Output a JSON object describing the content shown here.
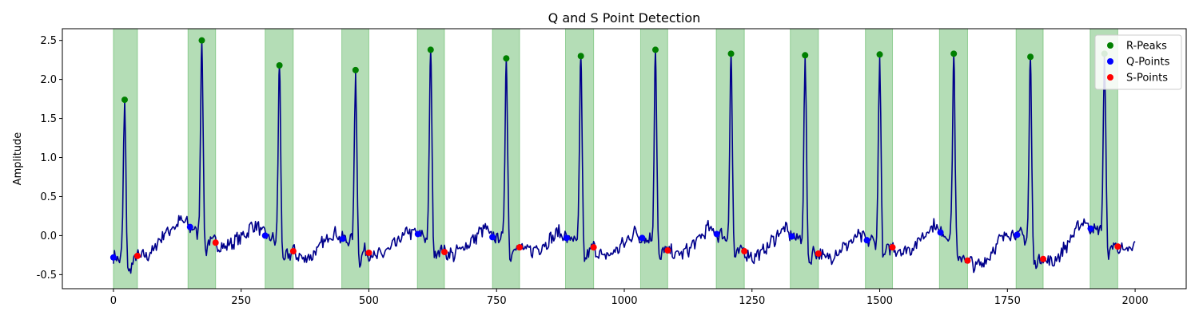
{
  "chart_data": {
    "type": "line",
    "title": "Q and S Point Detection",
    "xlabel": "",
    "ylabel": "Amplitude",
    "xlim": [
      -100,
      2100
    ],
    "ylim": [
      -0.68,
      2.65
    ],
    "xticks": [
      0,
      250,
      500,
      750,
      1000,
      1250,
      1500,
      1750,
      2000
    ],
    "yticks": [
      -0.5,
      0.0,
      0.5,
      1.0,
      1.5,
      2.0,
      2.5
    ],
    "grid": false,
    "legend_position": "top-right",
    "colors": {
      "signal": "#00008b",
      "r_peaks": "#008000",
      "q_points": "#0000ff",
      "s_points": "#ff0000",
      "qrs_band": "#4caf50"
    },
    "legend": [
      {
        "label": "R-Peaks",
        "color": "#008000"
      },
      {
        "label": "Q-Points",
        "color": "#0000ff"
      },
      {
        "label": "S-Points",
        "color": "#ff0000"
      }
    ],
    "qrs_regions": [
      [
        0,
        47
      ],
      [
        146,
        200
      ],
      [
        297,
        352
      ],
      [
        447,
        500
      ],
      [
        595,
        648
      ],
      [
        742,
        795
      ],
      [
        885,
        940
      ],
      [
        1032,
        1085
      ],
      [
        1180,
        1235
      ],
      [
        1325,
        1380
      ],
      [
        1472,
        1525
      ],
      [
        1617,
        1672
      ],
      [
        1767,
        1820
      ],
      [
        1912,
        1966
      ]
    ],
    "r_peaks": {
      "name": "R-Peaks",
      "x": [
        22,
        173,
        325,
        474,
        621,
        769,
        915,
        1061,
        1209,
        1354,
        1500,
        1645,
        1795,
        1940
      ],
      "y": [
        1.74,
        2.5,
        2.18,
        2.12,
        2.38,
        2.27,
        2.3,
        2.38,
        2.33,
        2.31,
        2.32,
        2.33,
        2.29,
        2.33
      ]
    },
    "q_points": {
      "name": "Q-Points",
      "x": [
        0,
        150,
        297,
        449,
        596,
        742,
        887,
        1035,
        1181,
        1328,
        1475,
        1619,
        1769,
        1913
      ],
      "y": [
        -0.28,
        0.11,
        0.0,
        -0.04,
        0.02,
        -0.02,
        -0.03,
        -0.03,
        0.02,
        -0.01,
        -0.06,
        0.04,
        0.01,
        0.09
      ]
    },
    "s_points": {
      "name": "S-Points",
      "x": [
        47,
        200,
        352,
        500,
        648,
        795,
        940,
        1085,
        1235,
        1380,
        1525,
        1672,
        1820,
        1966
      ],
      "y": [
        -0.26,
        -0.09,
        -0.2,
        -0.22,
        -0.21,
        -0.15,
        -0.15,
        -0.19,
        -0.2,
        -0.23,
        -0.15,
        -0.32,
        -0.3,
        -0.14
      ]
    },
    "signal": {
      "name": "ECG",
      "beat_x": [
        22,
        173,
        325,
        474,
        621,
        769,
        915,
        1061,
        1209,
        1354,
        1500,
        1645,
        1795,
        1940
      ],
      "beat_peak": [
        1.74,
        2.5,
        2.18,
        2.12,
        2.38,
        2.27,
        2.3,
        2.38,
        2.33,
        2.31,
        2.32,
        2.33,
        2.29,
        2.33
      ],
      "baseline": [
        [
          0,
          -0.28
        ],
        [
          15,
          -0.3
        ],
        [
          35,
          -0.35
        ],
        [
          47,
          -0.26
        ],
        [
          60,
          -0.27
        ],
        [
          75,
          -0.22
        ],
        [
          95,
          0.0
        ],
        [
          115,
          0.1
        ],
        [
          135,
          0.2
        ],
        [
          150,
          0.11
        ],
        [
          160,
          0.06
        ],
        [
          185,
          -0.05
        ],
        [
          200,
          -0.09
        ],
        [
          215,
          -0.15
        ],
        [
          230,
          -0.1
        ],
        [
          255,
          0.0
        ],
        [
          275,
          0.15
        ],
        [
          290,
          0.05
        ],
        [
          300,
          0.0
        ],
        [
          312,
          -0.05
        ],
        [
          340,
          -0.25
        ],
        [
          352,
          -0.2
        ],
        [
          370,
          -0.3
        ],
        [
          390,
          -0.25
        ],
        [
          410,
          -0.1
        ],
        [
          430,
          0.05
        ],
        [
          447,
          -0.04
        ],
        [
          460,
          -0.05
        ],
        [
          490,
          -0.2
        ],
        [
          500,
          -0.22
        ],
        [
          515,
          -0.28
        ],
        [
          535,
          -0.2
        ],
        [
          555,
          -0.1
        ],
        [
          575,
          0.05
        ],
        [
          596,
          0.02
        ],
        [
          608,
          0.0
        ],
        [
          635,
          -0.15
        ],
        [
          648,
          -0.21
        ],
        [
          665,
          -0.25
        ],
        [
          685,
          -0.15
        ],
        [
          705,
          -0.05
        ],
        [
          725,
          0.1
        ],
        [
          742,
          -0.02
        ],
        [
          755,
          -0.02
        ],
        [
          783,
          -0.12
        ],
        [
          795,
          -0.15
        ],
        [
          812,
          -0.2
        ],
        [
          835,
          -0.15
        ],
        [
          855,
          -0.05
        ],
        [
          872,
          0.05
        ],
        [
          887,
          -0.03
        ],
        [
          900,
          -0.04
        ],
        [
          928,
          -0.2
        ],
        [
          940,
          -0.15
        ],
        [
          958,
          -0.28
        ],
        [
          978,
          -0.22
        ],
        [
          1000,
          -0.1
        ],
        [
          1020,
          0.05
        ],
        [
          1035,
          -0.03
        ],
        [
          1048,
          -0.04
        ],
        [
          1075,
          -0.18
        ],
        [
          1085,
          -0.19
        ],
        [
          1102,
          -0.25
        ],
        [
          1122,
          -0.2
        ],
        [
          1145,
          -0.05
        ],
        [
          1165,
          0.1
        ],
        [
          1181,
          0.02
        ],
        [
          1195,
          0.0
        ],
        [
          1222,
          -0.18
        ],
        [
          1235,
          -0.2
        ],
        [
          1252,
          -0.28
        ],
        [
          1272,
          -0.2
        ],
        [
          1292,
          -0.05
        ],
        [
          1312,
          0.1
        ],
        [
          1328,
          -0.01
        ],
        [
          1340,
          -0.03
        ],
        [
          1368,
          -0.2
        ],
        [
          1380,
          -0.23
        ],
        [
          1398,
          -0.3
        ],
        [
          1418,
          -0.2
        ],
        [
          1440,
          -0.1
        ],
        [
          1460,
          0.0
        ],
        [
          1475,
          -0.06
        ],
        [
          1488,
          -0.07
        ],
        [
          1513,
          -0.16
        ],
        [
          1525,
          -0.15
        ],
        [
          1545,
          -0.2
        ],
        [
          1565,
          -0.15
        ],
        [
          1585,
          0.0
        ],
        [
          1605,
          0.15
        ],
        [
          1619,
          0.04
        ],
        [
          1632,
          0.02
        ],
        [
          1660,
          -0.25
        ],
        [
          1672,
          -0.32
        ],
        [
          1690,
          -0.4
        ],
        [
          1710,
          -0.3
        ],
        [
          1730,
          -0.1
        ],
        [
          1752,
          0.05
        ],
        [
          1769,
          0.01
        ],
        [
          1782,
          0.0
        ],
        [
          1808,
          -0.28
        ],
        [
          1820,
          -0.3
        ],
        [
          1838,
          -0.35
        ],
        [
          1858,
          -0.2
        ],
        [
          1878,
          0.0
        ],
        [
          1898,
          0.2
        ],
        [
          1913,
          0.09
        ],
        [
          1926,
          0.08
        ],
        [
          1955,
          -0.12
        ],
        [
          1966,
          -0.14
        ],
        [
          1980,
          -0.22
        ],
        [
          1992,
          -0.18
        ],
        [
          2000,
          -0.12
        ]
      ]
    }
  }
}
